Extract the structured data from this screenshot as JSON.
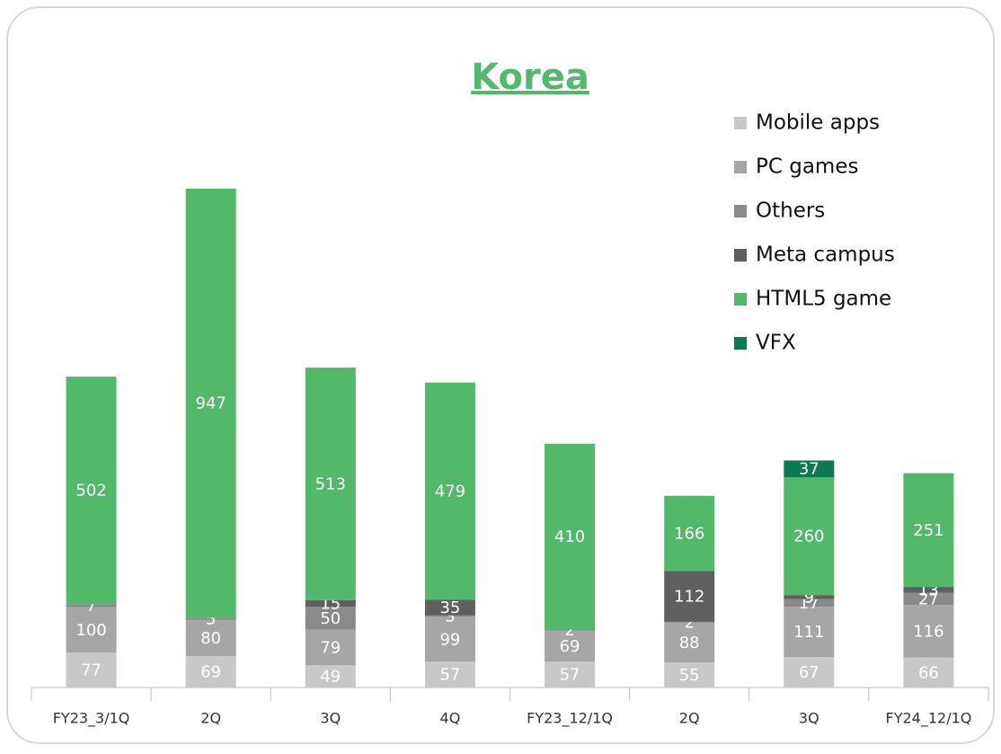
{
  "chart_data": {
    "type": "bar",
    "stacked": true,
    "title": "Korea",
    "categories": [
      "FY23_3/1Q",
      "2Q",
      "3Q",
      "4Q",
      "FY23_12/1Q",
      "2Q",
      "3Q",
      "FY24_12/1Q"
    ],
    "series": [
      {
        "name": "Mobile apps",
        "color": "#c8c8c8",
        "values": [
          77,
          69,
          49,
          57,
          57,
          55,
          67,
          66
        ]
      },
      {
        "name": "PC games",
        "color": "#a6a6a6",
        "values": [
          100,
          80,
          79,
          99,
          69,
          88,
          111,
          116
        ]
      },
      {
        "name": "Others",
        "color": "#8a8a8a",
        "values": [
          7,
          5,
          50,
          3,
          2,
          2,
          17,
          27
        ]
      },
      {
        "name": "Meta campus",
        "color": "#5f5f5f",
        "values": [
          null,
          null,
          15,
          35,
          null,
          112,
          9,
          13
        ]
      },
      {
        "name": "HTML5 game",
        "color": "#52b86a",
        "values": [
          502,
          947,
          513,
          479,
          410,
          166,
          260,
          251
        ]
      },
      {
        "name": "VFX",
        "color": "#0b7a52",
        "values": [
          null,
          null,
          null,
          null,
          null,
          null,
          37,
          null
        ]
      }
    ],
    "ylim": [
      0,
      1200
    ],
    "legend": "upper right"
  }
}
